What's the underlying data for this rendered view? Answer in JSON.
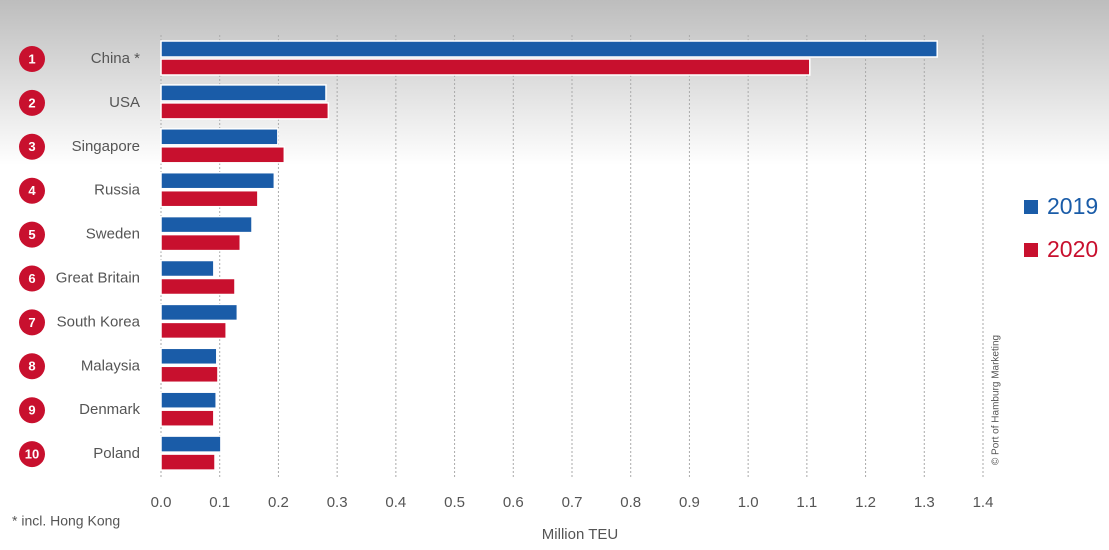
{
  "chart_data": {
    "type": "hbar",
    "categories": [
      "China *",
      "USA",
      "Singapore",
      "Russia",
      "Sweden",
      "Great Britain",
      "South Korea",
      "Malaysia",
      "Denmark",
      "Poland"
    ],
    "ranks": [
      1,
      2,
      3,
      4,
      5,
      6,
      7,
      8,
      9,
      10
    ],
    "series": [
      {
        "name": "2019",
        "color": "#1a5ca8",
        "values": [
          1.322,
          0.281,
          0.199,
          0.193,
          0.155,
          0.09,
          0.13,
          0.095,
          0.094,
          0.102
        ]
      },
      {
        "name": "2020",
        "color": "#c8102e",
        "values": [
          1.105,
          0.285,
          0.21,
          0.165,
          0.135,
          0.126,
          0.111,
          0.097,
          0.09,
          0.092
        ]
      }
    ],
    "xlim": [
      0,
      1.4
    ],
    "xticks": [
      {
        "value": 0,
        "label": "0.0"
      },
      0.1,
      0.2,
      0.3,
      0.4,
      0.5,
      0.6,
      0.7,
      0.8,
      0.9,
      {
        "value": 1,
        "label": "1.0"
      },
      1.1,
      1.2,
      1.3,
      1.4
    ],
    "x_label": "Million TEU",
    "footnote": "*   incl. Hong Kong",
    "credit": "© Port of Hamburg Marketing",
    "grid": true,
    "legend": "right",
    "rank_color": "#c8102e"
  }
}
